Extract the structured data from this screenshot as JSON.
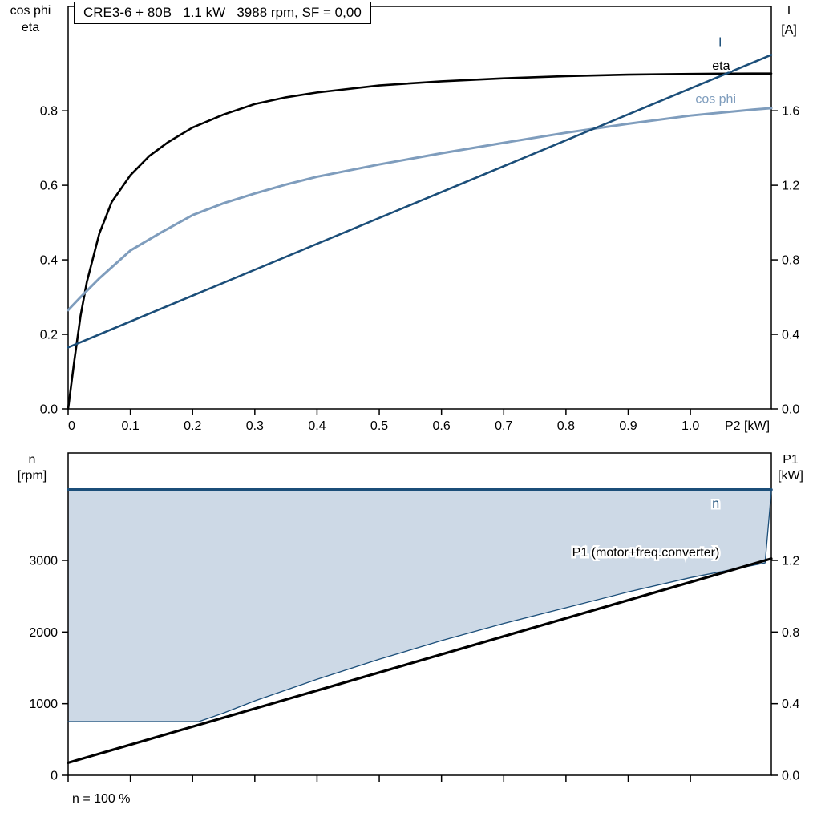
{
  "page": {
    "background": "#ffffff"
  },
  "chart_data": [
    {
      "id": "motor-performance-curves",
      "type": "line",
      "title": "CRE3-6 + 80B   1.1 kW   3988 rpm, SF = 0,00",
      "x_axis": {
        "label": "P2 [kW]",
        "min": 0,
        "max": 1.13,
        "ticks": [
          0,
          0.1,
          0.2,
          0.3,
          0.4,
          0.5,
          0.6,
          0.7,
          0.8,
          0.9,
          1.0
        ],
        "tick_labels": [
          "0",
          "0.1",
          "0.2",
          "0.3",
          "0.4",
          "0.5",
          "0.6",
          "0.7",
          "0.8",
          "0.9",
          "1.0"
        ]
      },
      "y_left": {
        "title_lines": [
          "cos phi",
          "eta"
        ],
        "min": 0,
        "max": 1.08,
        "ticks": [
          0,
          0.2,
          0.4,
          0.6,
          0.8
        ],
        "tick_labels": [
          "0.0",
          "0.2",
          "0.4",
          "0.6",
          "0.8"
        ]
      },
      "y_right": {
        "title_lines": [
          "I",
          "[A]"
        ],
        "min": 0,
        "max": 2.16,
        "ticks": [
          0,
          0.4,
          0.8,
          1.2,
          1.6
        ],
        "tick_labels": [
          "0.0",
          "0.4",
          "0.8",
          "1.2",
          "1.6"
        ]
      },
      "series": [
        {
          "name": "eta",
          "axis": "left",
          "color": "#000000",
          "width": 2.6,
          "x": [
            0,
            0.01,
            0.02,
            0.03,
            0.05,
            0.07,
            0.1,
            0.13,
            0.16,
            0.2,
            0.25,
            0.3,
            0.35,
            0.4,
            0.5,
            0.6,
            0.7,
            0.8,
            0.9,
            1.0,
            1.1,
            1.13
          ],
          "y": [
            0,
            0.13,
            0.25,
            0.34,
            0.47,
            0.555,
            0.627,
            0.678,
            0.715,
            0.755,
            0.79,
            0.818,
            0.836,
            0.849,
            0.868,
            0.879,
            0.887,
            0.893,
            0.897,
            0.899,
            0.9,
            0.9
          ]
        },
        {
          "name": "cos phi",
          "axis": "left",
          "color": "#7f9dbd",
          "width": 3,
          "x": [
            0,
            0.02,
            0.05,
            0.1,
            0.15,
            0.2,
            0.25,
            0.3,
            0.35,
            0.4,
            0.5,
            0.6,
            0.7,
            0.8,
            0.9,
            1.0,
            1.1,
            1.13
          ],
          "y": [
            0.265,
            0.3,
            0.35,
            0.425,
            0.474,
            0.52,
            0.552,
            0.578,
            0.602,
            0.623,
            0.656,
            0.686,
            0.714,
            0.741,
            0.765,
            0.787,
            0.803,
            0.807
          ]
        },
        {
          "name": "I",
          "axis": "right",
          "color": "#1b4e79",
          "width": 2.6,
          "x": [
            0,
            1.13
          ],
          "y": [
            0.33,
            1.9
          ]
        }
      ],
      "annotations": [
        {
          "text": "I",
          "color": "#1b4e79",
          "axis": "right",
          "x": 1.045,
          "y": 1.97,
          "anchor": "start"
        },
        {
          "text": "eta",
          "color": "#000000",
          "axis": "left",
          "x": 1.035,
          "y": 0.922,
          "anchor": "start"
        },
        {
          "text": "cos phi",
          "color": "#7f9dbd",
          "axis": "left",
          "x": 1.008,
          "y": 0.833,
          "anchor": "start"
        }
      ]
    },
    {
      "id": "speed-and-input-power",
      "type": "line",
      "title": "",
      "x_axis": {
        "label": "",
        "min": 0,
        "max": 1.13,
        "ticks": [
          0,
          0.1,
          0.2,
          0.3,
          0.4,
          0.5,
          0.6,
          0.7,
          0.8,
          0.9,
          1.0
        ],
        "tick_labels": [
          "",
          "",
          "",
          "",
          "",
          "",
          "",
          "",
          "",
          "",
          ""
        ]
      },
      "y_left": {
        "title_lines": [
          "n",
          "[rpm]"
        ],
        "min": 0,
        "max": 4500,
        "ticks": [
          0,
          1000,
          2000,
          3000
        ],
        "tick_labels": [
          "0",
          "1000",
          "2000",
          "3000"
        ]
      },
      "y_right": {
        "title_lines": [
          "P1",
          "[kW]"
        ],
        "min": 0,
        "max": 1.8,
        "ticks": [
          0,
          0.4,
          0.8,
          1.2
        ],
        "tick_labels": [
          "0.0",
          "0.4",
          "0.8",
          "1.2"
        ]
      },
      "band": {
        "fill": "#cdd9e6",
        "upper_value": 3988,
        "lower_x": [
          0,
          0.21,
          0.25,
          0.3,
          0.4,
          0.5,
          0.6,
          0.7,
          0.8,
          0.9,
          1.0,
          1.1,
          1.12,
          1.13
        ],
        "lower_y": [
          750,
          750,
          870,
          1040,
          1340,
          1620,
          1880,
          2120,
          2340,
          2560,
          2760,
          2930,
          2965,
          3960
        ]
      },
      "series": [
        {
          "name": "n max",
          "axis": "left",
          "color": "#1b4e79",
          "width": 3.5,
          "x": [
            0,
            1.13
          ],
          "y": [
            3988,
            3988
          ]
        },
        {
          "name": "n min",
          "axis": "left",
          "color": "#1b4e79",
          "width": 1.3,
          "x": [
            0,
            0.21,
            0.25,
            0.3,
            0.4,
            0.5,
            0.6,
            0.7,
            0.8,
            0.9,
            1.0,
            1.1,
            1.12,
            1.13
          ],
          "y": [
            750,
            750,
            870,
            1040,
            1340,
            1620,
            1880,
            2120,
            2340,
            2560,
            2760,
            2930,
            2965,
            3960
          ]
        },
        {
          "name": "P1 (motor+freq.converter)",
          "axis": "right",
          "color": "#000000",
          "width": 3.2,
          "x": [
            0,
            1.13
          ],
          "y": [
            0.07,
            1.21
          ]
        }
      ],
      "annotations": [
        {
          "text": "n",
          "color": "#1b4e79",
          "axis": "left",
          "x": 1.035,
          "y": 3800,
          "anchor": "start"
        },
        {
          "text": "P1 (motor+freq.converter)",
          "color": "#000000",
          "axis": "left",
          "x": 0.81,
          "y": 3120,
          "anchor": "start"
        }
      ],
      "footer": "n = 100 %"
    }
  ]
}
